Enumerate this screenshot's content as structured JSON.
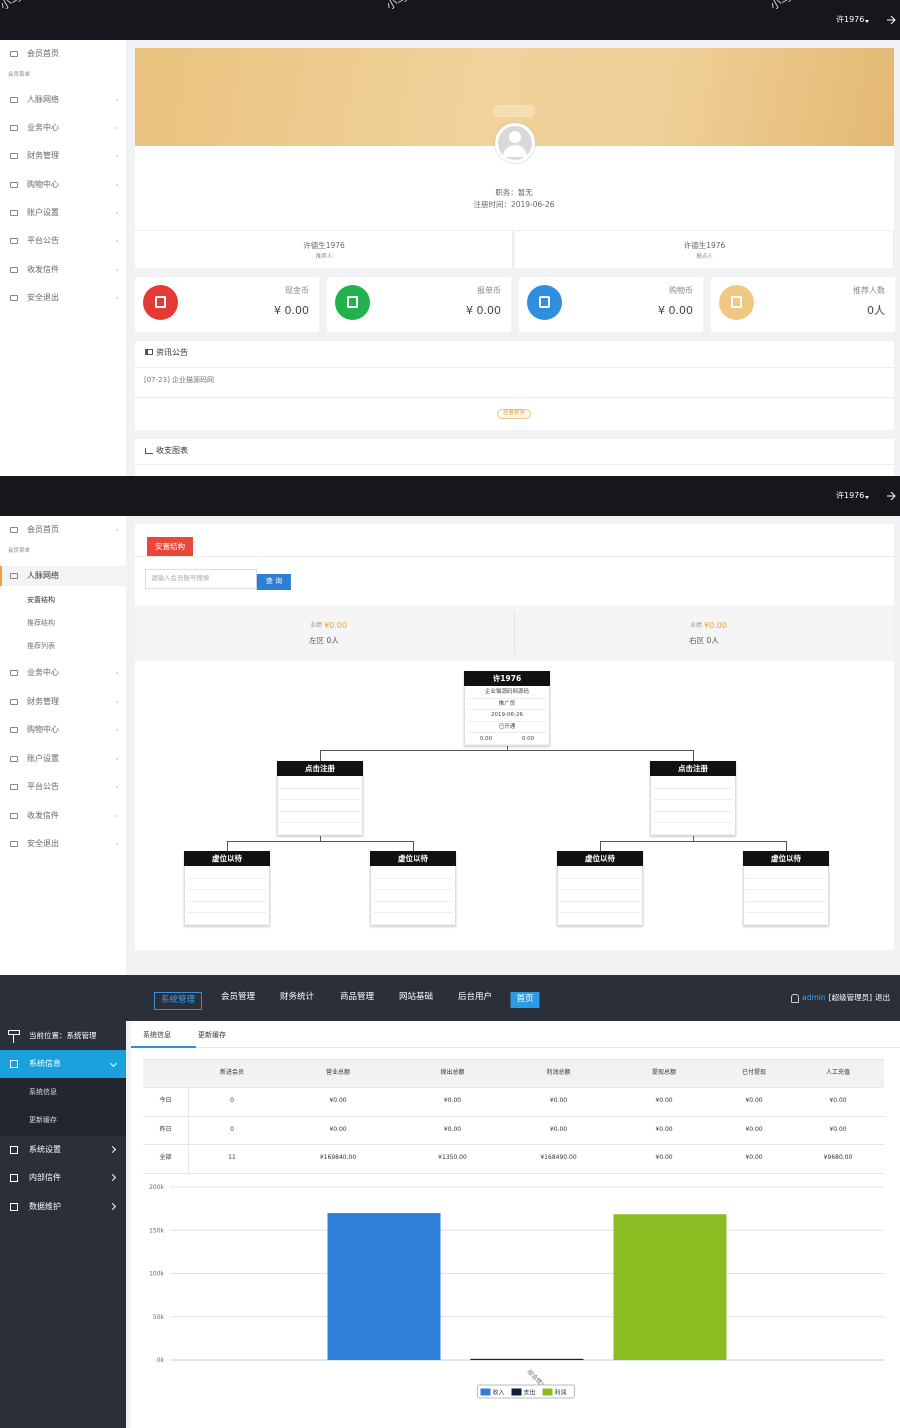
{
  "watermarks": [
    "小马",
    "小马",
    "小马",
    "小马博客 www.xiaomaw"
  ],
  "member_home": {
    "user": "许1976",
    "menu": [
      "会员首页",
      "会员菜单",
      "人脉网络",
      "业务中心",
      "财务管理",
      "购物中心",
      "账户设置",
      "平台公告",
      "收发信件",
      "安全退出"
    ],
    "profile": {
      "position": "职务：暂无",
      "registered": "注册时间：2019-06-26"
    },
    "referrers": [
      {
        "name": "许德生1976",
        "role": "推荐人"
      },
      {
        "name": "许德生1976",
        "role": "报点人"
      }
    ],
    "stats": [
      {
        "label": "现金币",
        "value": "¥ 0.00"
      },
      {
        "label": "报单币",
        "value": "¥ 0.00"
      },
      {
        "label": "购物币",
        "value": "¥ 0.00"
      },
      {
        "label": "推荐人数",
        "value": "0人"
      }
    ],
    "notice": {
      "title": "资讯公告",
      "items": [
        "[07-23] 企业猫源码网"
      ],
      "more": "查看更多"
    },
    "chart_title": "收支图表"
  },
  "network": {
    "user": "许1976",
    "menu": [
      "会员首页",
      "会员菜单",
      "人脉网络",
      "业务中心",
      "财务管理",
      "购物中心",
      "账户设置",
      "平台公告",
      "收发信件",
      "安全退出"
    ],
    "submenu": [
      "安置结构",
      "推荐结构",
      "推荐列表"
    ],
    "tab": "安置结构",
    "search_placeholder": "请输入会员账号搜索",
    "search_button": "查 询",
    "zones": [
      {
        "label": "业绩",
        "value": "¥0.00",
        "count": "左区 0人"
      },
      {
        "label": "业绩",
        "value": "¥0.00",
        "count": "右区 0人"
      }
    ],
    "root": {
      "name": "许1976",
      "lines": [
        "企业猫源码网源码",
        "推广员",
        "2019-06-26",
        "已开通"
      ],
      "left": "0.00",
      "right": "0.00"
    },
    "level2": [
      "点击注册",
      "点击注册"
    ],
    "level3": [
      "虚位以待",
      "虚位以待",
      "虚位以待",
      "虚位以待"
    ]
  },
  "admin": {
    "nav": [
      "系统管理",
      "会员管理",
      "财务统计",
      "商品管理",
      "网站基础",
      "后台用户",
      "首页"
    ],
    "user": "admin",
    "role": "[超级管理员]",
    "logout": "退出",
    "location": "当前位置：系统管理",
    "menu": [
      {
        "label": "系统信息",
        "children": [
          "系统信息",
          "更新缓存"
        ]
      },
      {
        "label": "系统设置"
      },
      {
        "label": "内部信件"
      },
      {
        "label": "数据维护"
      }
    ],
    "tabs": [
      "系统信息",
      "更新缓存"
    ],
    "table": {
      "header": [
        "新进会员",
        "营业总额",
        "拨出总额",
        "利润总额",
        "提现总额",
        "已付提现",
        "人工充值"
      ],
      "rows": [
        {
          "label": "今日",
          "cells": [
            "0",
            "¥0.00",
            "¥0.00",
            "¥0.00",
            "¥0.00",
            "¥0.00",
            "¥0.00"
          ]
        },
        {
          "label": "昨日",
          "cells": [
            "0",
            "¥0.00",
            "¥0.00",
            "¥0.00",
            "¥0.00",
            "¥0.00",
            "¥0.00"
          ]
        },
        {
          "label": "全部",
          "cells": [
            "11",
            "¥169840.00",
            "¥1350.00",
            "¥168490.00",
            "¥0.00",
            "¥0.00",
            "¥9680.00"
          ]
        }
      ]
    }
  },
  "chart_data": {
    "type": "bar",
    "categories": [
      "综合统计"
    ],
    "series": [
      {
        "name": "收入",
        "color": "#2f7ed8",
        "values": [
          169840
        ]
      },
      {
        "name": "支出",
        "color": "#0d233a",
        "values": [
          1350
        ]
      },
      {
        "name": "利润",
        "color": "#8bbc21",
        "values": [
          168490
        ]
      }
    ],
    "ylim": [
      0,
      200000
    ],
    "yticks": [
      {
        "value": 0,
        "label": "0k"
      },
      {
        "value": 50000,
        "label": "50k"
      },
      {
        "value": 100000,
        "label": "100k"
      },
      {
        "value": 150000,
        "label": "150k"
      },
      {
        "value": 200000,
        "label": "200k"
      }
    ],
    "grid": true,
    "legend": "bottom"
  }
}
